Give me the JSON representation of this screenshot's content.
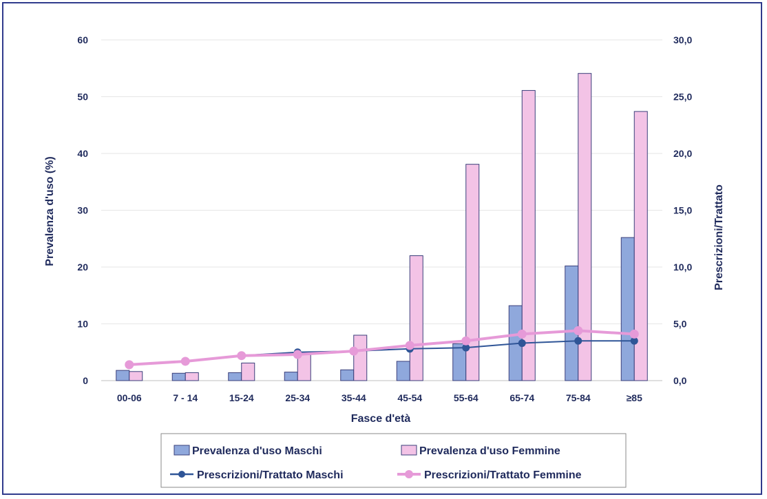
{
  "chart_data": {
    "type": "bar",
    "categories": [
      "00-06",
      "7 - 14",
      "15-24",
      "25-34",
      "35-44",
      "45-54",
      "55-64",
      "65-74",
      "75-84",
      "≥85"
    ],
    "xlabel": "Fasce d'età",
    "ylabel": "Prevalenza d'uso (%)",
    "y2label": "Prescrizioni/Trattato",
    "ylim": [
      0,
      60
    ],
    "y2lim": [
      0,
      30
    ],
    "yticks": [
      "0",
      "10",
      "20",
      "30",
      "40",
      "50",
      "60"
    ],
    "y2ticks": [
      "0,0",
      "5,0",
      "10,0",
      "15,0",
      "20,0",
      "25,0",
      "30,0"
    ],
    "grid": true,
    "legend_position": "bottom",
    "series": [
      {
        "name": "Prevalenza d'uso Maschi",
        "kind": "bar",
        "axis": "left",
        "color": "#8fa8dc",
        "values": [
          1.8,
          1.3,
          1.4,
          1.5,
          1.9,
          3.4,
          6.5,
          13.2,
          20.2,
          25.2
        ]
      },
      {
        "name": "Prevalenza d'uso Femmine",
        "kind": "bar",
        "axis": "left",
        "color": "#f3c3e6",
        "values": [
          1.6,
          1.4,
          3.1,
          4.8,
          8.0,
          22.0,
          38.1,
          51.1,
          54.1,
          47.4
        ]
      },
      {
        "name": "Prescrizioni/Trattato Maschi",
        "kind": "line",
        "axis": "right",
        "color": "#2f5597",
        "values": [
          1.4,
          1.7,
          2.2,
          2.5,
          2.6,
          2.8,
          2.9,
          3.3,
          3.5,
          3.5
        ]
      },
      {
        "name": "Prescrizioni/Trattato Femmine",
        "kind": "line",
        "axis": "right",
        "color": "#e69ad8",
        "values": [
          1.4,
          1.7,
          2.2,
          2.3,
          2.6,
          3.1,
          3.5,
          4.1,
          4.4,
          4.1
        ]
      }
    ]
  }
}
